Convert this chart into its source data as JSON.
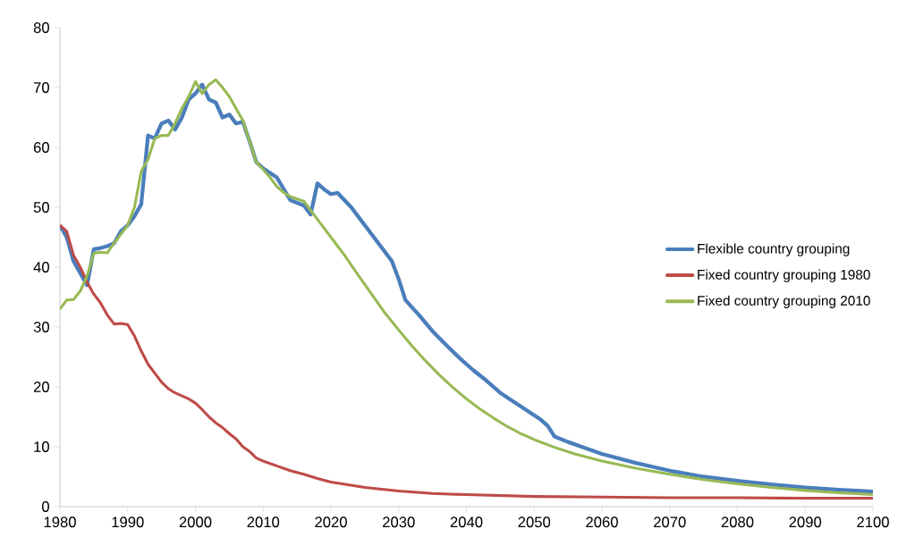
{
  "chart_data": {
    "type": "line",
    "xlim": [
      1980,
      2100
    ],
    "ylim": [
      0,
      80
    ],
    "xticks": [
      1980,
      1990,
      2000,
      2010,
      2020,
      2030,
      2040,
      2050,
      2060,
      2070,
      2080,
      2090,
      2100
    ],
    "yticks": [
      0,
      10,
      20,
      30,
      40,
      50,
      60,
      70,
      80
    ],
    "grid": false,
    "legend": "right",
    "marker": "none",
    "line_style": "solid",
    "series": [
      {
        "name": "Flexible country grouping",
        "color": "#4a7ebb",
        "x": [
          1980,
          1981,
          1982,
          1983,
          1984,
          1985,
          1986,
          1987,
          1988,
          1989,
          1990,
          1991,
          1992,
          1993,
          1994,
          1995,
          1996,
          1997,
          1998,
          1999,
          2000,
          2001,
          2002,
          2003,
          2004,
          2005,
          2006,
          2007,
          2008,
          2009,
          2010,
          2012,
          2014,
          2016,
          2017,
          2018,
          2019,
          2020,
          2021,
          2023,
          2025,
          2027,
          2029,
          2030,
          2031,
          2033,
          2035,
          2037,
          2039,
          2041,
          2043,
          2045,
          2047,
          2049,
          2051,
          2052,
          2053,
          2055,
          2057,
          2060,
          2065,
          2070,
          2075,
          2080,
          2085,
          2090,
          2095,
          2100
        ],
        "values": [
          47,
          45,
          41,
          39,
          37,
          43,
          43.2,
          43.5,
          44,
          46,
          47,
          48.5,
          50.5,
          62,
          61.5,
          64,
          64.5,
          63,
          65,
          68,
          69,
          70.5,
          68,
          67.5,
          65,
          65.5,
          64,
          64.3,
          61,
          57.5,
          56.5,
          55,
          51.2,
          50.3,
          48.8,
          54,
          53,
          52.2,
          52.4,
          50,
          47,
          44,
          41,
          38,
          34.5,
          32,
          29.3,
          27,
          24.8,
          22.8,
          21,
          19,
          17.5,
          16,
          14.5,
          13.5,
          11.7,
          10.8,
          10,
          8.8,
          7.3,
          6,
          5,
          4.3,
          3.7,
          3.2,
          2.8,
          2.5
        ]
      },
      {
        "name": "Fixed country grouping 1980",
        "color": "#be4b48",
        "x": [
          1980,
          1981,
          1982,
          1983,
          1984,
          1985,
          1986,
          1987,
          1988,
          1989,
          1990,
          1991,
          1992,
          1993,
          1994,
          1995,
          1996,
          1997,
          1998,
          1999,
          2000,
          2001,
          2002,
          2003,
          2004,
          2005,
          2006,
          2007,
          2008,
          2009,
          2010,
          2012,
          2014,
          2016,
          2018,
          2020,
          2025,
          2030,
          2035,
          2040,
          2050,
          2060,
          2070,
          2080,
          2090,
          2100
        ],
        "values": [
          47,
          46,
          42,
          40,
          37.5,
          35.5,
          34,
          32,
          30.5,
          30.6,
          30.4,
          28.5,
          26,
          23.8,
          22.3,
          20.8,
          19.7,
          19,
          18.5,
          18,
          17.3,
          16.2,
          15,
          14,
          13.2,
          12.2,
          11.3,
          10,
          9.2,
          8.1,
          7.6,
          6.8,
          6,
          5.4,
          4.7,
          4.1,
          3.2,
          2.6,
          2.2,
          2.0,
          1.7,
          1.6,
          1.5,
          1.5,
          1.4,
          1.4
        ]
      },
      {
        "name": "Fixed country grouping 2010",
        "color": "#98b954",
        "x": [
          1980,
          1981,
          1982,
          1983,
          1984,
          1985,
          1986,
          1987,
          1988,
          1989,
          1990,
          1991,
          1992,
          1993,
          1994,
          1995,
          1996,
          1997,
          1998,
          1999,
          2000,
          2001,
          2002,
          2003,
          2004,
          2005,
          2006,
          2007,
          2008,
          2009,
          2010,
          2011,
          2012,
          2013,
          2014,
          2016,
          2018,
          2020,
          2022,
          2024,
          2026,
          2028,
          2030,
          2032,
          2034,
          2036,
          2038,
          2040,
          2042,
          2044,
          2046,
          2048,
          2050,
          2053,
          2056,
          2060,
          2065,
          2070,
          2075,
          2080,
          2085,
          2090,
          2095,
          2100
        ],
        "values": [
          33,
          34.5,
          34.6,
          36,
          38.5,
          42.3,
          42.5,
          42.4,
          44,
          45.5,
          47,
          50,
          56,
          58,
          61.5,
          62,
          62,
          64,
          66.5,
          68.5,
          71,
          69,
          70.5,
          71.3,
          70,
          68.5,
          66.5,
          64.5,
          61,
          57.5,
          56.3,
          55,
          53.5,
          52.5,
          51.8,
          51,
          48,
          45,
          42,
          38.7,
          35.5,
          32.3,
          29.5,
          26.8,
          24.3,
          22,
          19.9,
          18,
          16.3,
          14.8,
          13.4,
          12.2,
          11.2,
          9.9,
          8.8,
          7.6,
          6.4,
          5.4,
          4.5,
          3.8,
          3.2,
          2.7,
          2.3,
          2.0
        ]
      }
    ]
  }
}
